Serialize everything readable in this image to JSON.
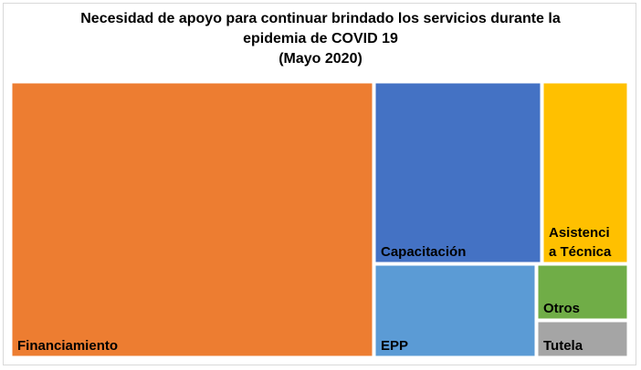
{
  "title_lines": [
    "Necesidad de apoyo para continuar brindado los servicios durante la",
    "epidemia  de COVID 19",
    "(Mayo 2020)"
  ],
  "chart_data": {
    "type": "treemap",
    "title": "Necesidad de apoyo para continuar brindado los servicios durante la epidemia  de COVID 19 (Mayo 2020)",
    "items": [
      {
        "label": "Financiamiento",
        "color": "#ed7d31",
        "label_lines": [
          "Financiamiento"
        ]
      },
      {
        "label": "Capacitación",
        "color": "#4472c4",
        "label_lines": [
          "Capacitación"
        ]
      },
      {
        "label": "Asistencia Técnica",
        "color": "#ffc000",
        "label_lines": [
          "Asistenci",
          "a Técnica"
        ]
      },
      {
        "label": "EPP",
        "color": "#5b9bd5",
        "label_lines": [
          "EPP"
        ]
      },
      {
        "label": "Otros",
        "color": "#70ad47",
        "label_lines": [
          "Otros"
        ]
      },
      {
        "label": "Tutela",
        "color": "#a5a5a5",
        "label_lines": [
          "Tutela"
        ]
      }
    ]
  }
}
